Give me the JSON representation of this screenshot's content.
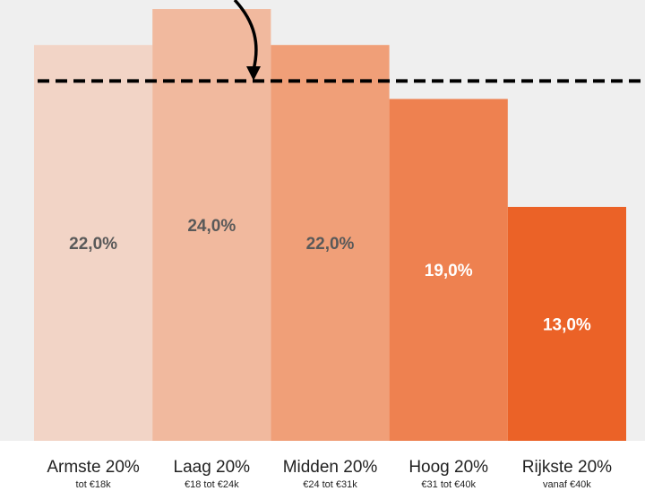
{
  "chart_data": {
    "type": "bar",
    "categories": [
      "Armste 20%",
      "Laag 20%",
      "Midden 20%",
      "Hoog 20%",
      "Rijkste 20%"
    ],
    "subcategories": [
      "tot €18k",
      "€18 tot €24k",
      "€24 tot €31k",
      "€31 tot €40k",
      "vanaf €40k"
    ],
    "values": [
      22,
      24,
      22,
      19,
      13
    ],
    "value_labels": [
      "22,0%",
      "24,0%",
      "22,0%",
      "19,0%",
      "13,0%"
    ],
    "colors": [
      "#f2d4c6",
      "#f1b99e",
      "#f09f78",
      "#ee8150",
      "#eb6227"
    ],
    "value_label_colors": [
      "#595959",
      "#595959",
      "#595959",
      "#ffffff",
      "#ffffff"
    ],
    "ylim": [
      0,
      24.5
    ],
    "reference_line": {
      "value": 20,
      "color": "#000000"
    },
    "background": "#efefef"
  }
}
